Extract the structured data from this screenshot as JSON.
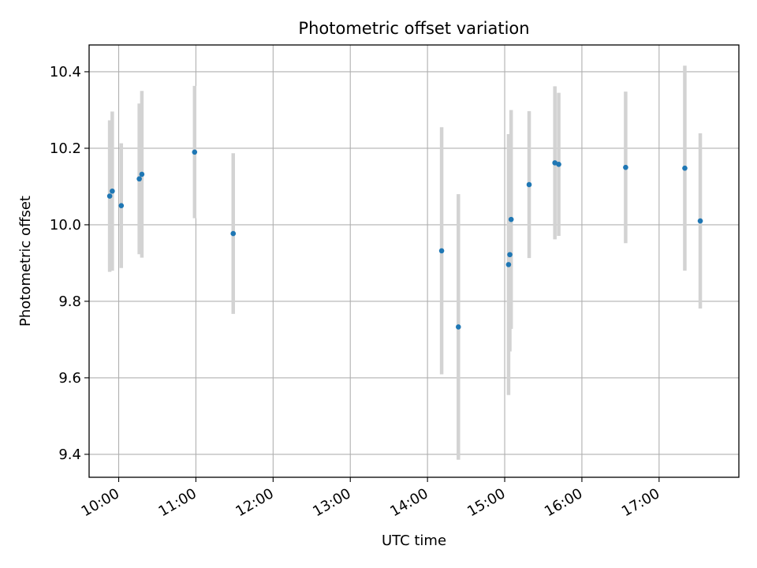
{
  "chart_data": {
    "type": "scatter",
    "title": "Photometric offset variation",
    "xlabel": "UTC time",
    "ylabel": "Photometric offset",
    "x_unit": "UTC time (HH:MM)",
    "xlim": [
      "09:37",
      "18:02"
    ],
    "ylim": [
      9.34,
      10.47
    ],
    "xticks": [
      "10:00",
      "11:00",
      "12:00",
      "13:00",
      "14:00",
      "15:00",
      "16:00",
      "17:00"
    ],
    "yticks": [
      9.4,
      9.6,
      9.8,
      10.0,
      10.2,
      10.4
    ],
    "ytick_labels": [
      "9.4",
      "9.6",
      "9.8",
      "10.0",
      "10.2",
      "10.4"
    ],
    "grid": true,
    "marker_color": "#1f77b4",
    "errorbar_color": "#d3d3d3",
    "points": [
      {
        "x": "09:53",
        "y": 10.075,
        "err": 0.198
      },
      {
        "x": "09:55",
        "y": 10.088,
        "err": 0.208
      },
      {
        "x": "10:02",
        "y": 10.05,
        "err": 0.163
      },
      {
        "x": "10:16",
        "y": 10.12,
        "err": 0.197
      },
      {
        "x": "10:18",
        "y": 10.132,
        "err": 0.218
      },
      {
        "x": "10:59",
        "y": 10.19,
        "err": 0.173
      },
      {
        "x": "11:29",
        "y": 9.977,
        "err": 0.21
      },
      {
        "x": "14:11",
        "y": 9.932,
        "err": 0.323
      },
      {
        "x": "14:24",
        "y": 9.733,
        "err": 0.347
      },
      {
        "x": "15:03",
        "y": 9.896,
        "err": 0.341
      },
      {
        "x": "15:04",
        "y": 9.922,
        "err": 0.253
      },
      {
        "x": "15:05",
        "y": 10.014,
        "err": 0.286
      },
      {
        "x": "15:19",
        "y": 10.105,
        "err": 0.192
      },
      {
        "x": "15:39",
        "y": 10.162,
        "err": 0.2
      },
      {
        "x": "15:42",
        "y": 10.158,
        "err": 0.187
      },
      {
        "x": "16:34",
        "y": 10.15,
        "err": 0.198
      },
      {
        "x": "17:20",
        "y": 10.148,
        "err": 0.268
      },
      {
        "x": "17:32",
        "y": 10.01,
        "err": 0.229
      }
    ]
  }
}
